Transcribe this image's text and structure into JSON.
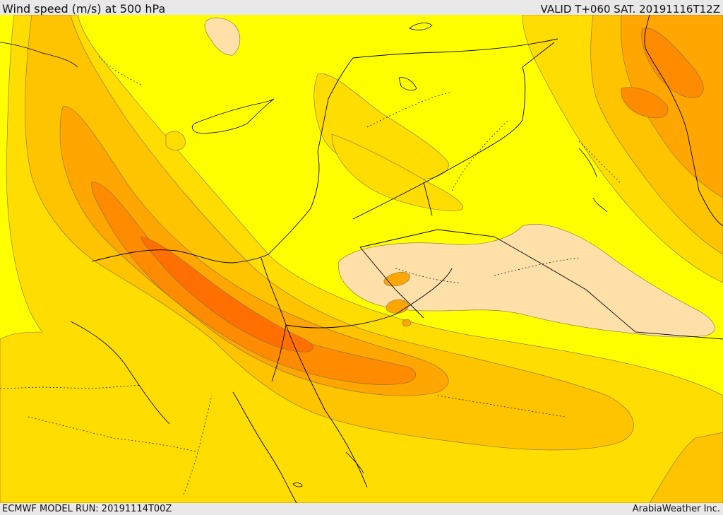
{
  "header": {
    "title": "Wind speed (m/s) at 500 hPa",
    "valid": "VALID T+060 SAT. 20191116T12Z"
  },
  "footer": {
    "model_run": "ECMWF MODEL RUN: 20191114T00Z",
    "credit": "ArabiaWeather Inc."
  },
  "colors": {
    "base": "#ffff00",
    "level1": "#ffdd00",
    "level2": "#ffc400",
    "level3": "#ffa700",
    "level4": "#ff8c00",
    "level5": "#ff7000",
    "calm": "#ffe0a8",
    "contour": "#7a6a50",
    "border": "#000000"
  }
}
